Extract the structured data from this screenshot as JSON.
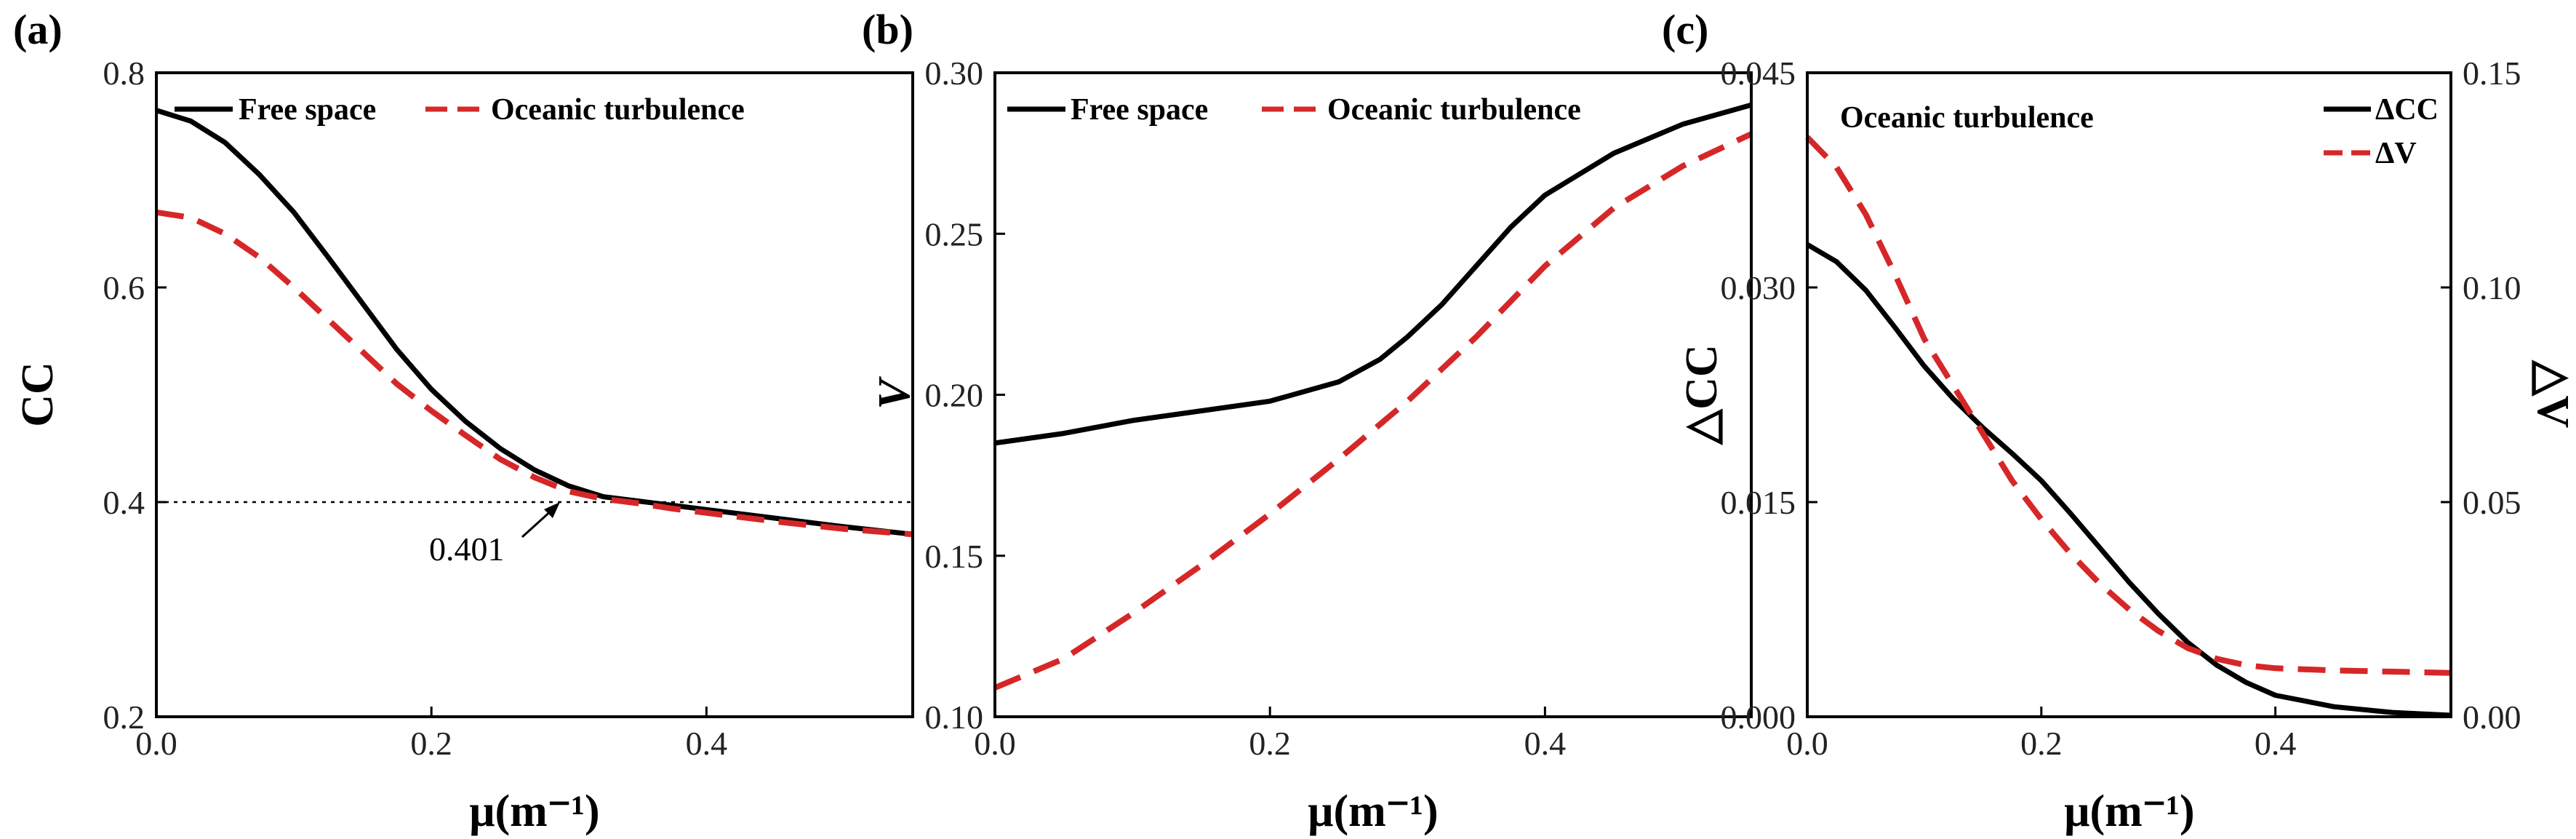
{
  "chart_data": [
    {
      "type": "line",
      "panel_label": "(a)",
      "xlabel": "μ(m⁻¹)",
      "ylabel": "CC",
      "xlim": [
        0,
        0.55
      ],
      "ylim": [
        0.2,
        0.8
      ],
      "xticks": [
        0.0,
        0.2,
        0.4
      ],
      "xtick_labels": [
        "0.0",
        "0.2",
        "0.4"
      ],
      "yticks": [
        0.2,
        0.4,
        0.6,
        0.8
      ],
      "ytick_labels": [
        "0.2",
        "0.4",
        "0.6",
        "0.8"
      ],
      "legend_position": "top",
      "series": [
        {
          "name": "Free space",
          "color": "#000000",
          "dash": "solid",
          "x": [
            0,
            0.025,
            0.05,
            0.075,
            0.1,
            0.125,
            0.15,
            0.175,
            0.2,
            0.225,
            0.25,
            0.275,
            0.3,
            0.325,
            0.35,
            0.375,
            0.4,
            0.45,
            0.5,
            0.55
          ],
          "y": [
            0.765,
            0.755,
            0.735,
            0.705,
            0.67,
            0.628,
            0.585,
            0.542,
            0.505,
            0.475,
            0.45,
            0.43,
            0.415,
            0.405,
            0.401,
            0.397,
            0.393,
            0.385,
            0.377,
            0.37
          ]
        },
        {
          "name": "Oceanic turbulence",
          "color": "#d62728",
          "dash": "dashed",
          "x": [
            0,
            0.025,
            0.05,
            0.075,
            0.1,
            0.125,
            0.15,
            0.175,
            0.2,
            0.225,
            0.25,
            0.275,
            0.3,
            0.325,
            0.35,
            0.375,
            0.4,
            0.45,
            0.5,
            0.55
          ],
          "y": [
            0.67,
            0.665,
            0.65,
            0.628,
            0.6,
            0.57,
            0.54,
            0.51,
            0.485,
            0.462,
            0.44,
            0.423,
            0.41,
            0.403,
            0.399,
            0.394,
            0.39,
            0.382,
            0.375,
            0.37
          ]
        }
      ],
      "reference_line": {
        "y": 0.4,
        "style": "dotted"
      },
      "annotations": [
        {
          "text": "0.401",
          "x": 0.35,
          "y": 0.401
        }
      ]
    },
    {
      "type": "line",
      "panel_label": "(b)",
      "xlabel": "μ(m⁻¹)",
      "ylabel": "V",
      "xlim": [
        0,
        0.55
      ],
      "ylim": [
        0.1,
        0.3
      ],
      "xticks": [
        0.0,
        0.2,
        0.4
      ],
      "xtick_labels": [
        "0.0",
        "0.2",
        "0.4"
      ],
      "yticks": [
        0.1,
        0.15,
        0.2,
        0.25,
        0.3
      ],
      "ytick_labels": [
        "0.10",
        "0.15",
        "0.20",
        "0.25",
        "0.30"
      ],
      "legend_position": "top",
      "series": [
        {
          "name": "Free space",
          "color": "#000000",
          "dash": "solid",
          "x": [
            0,
            0.05,
            0.1,
            0.15,
            0.2,
            0.25,
            0.28,
            0.3,
            0.325,
            0.35,
            0.375,
            0.4,
            0.45,
            0.5,
            0.55
          ],
          "y": [
            0.185,
            0.188,
            0.192,
            0.195,
            0.198,
            0.204,
            0.211,
            0.218,
            0.228,
            0.24,
            0.252,
            0.262,
            0.275,
            0.284,
            0.29
          ]
        },
        {
          "name": "Oceanic turbulence",
          "color": "#d62728",
          "dash": "dashed",
          "x": [
            0,
            0.05,
            0.1,
            0.15,
            0.2,
            0.25,
            0.3,
            0.35,
            0.4,
            0.45,
            0.5,
            0.55
          ],
          "y": [
            0.109,
            0.118,
            0.132,
            0.147,
            0.163,
            0.18,
            0.198,
            0.218,
            0.24,
            0.258,
            0.271,
            0.281
          ]
        }
      ]
    },
    {
      "type": "line",
      "panel_label": "(c)",
      "inset_text": "Oceanic turbulence",
      "xlabel": "μ(m⁻¹)",
      "ylabel": "△CC",
      "ylabel_right": "△V",
      "xlim": [
        0,
        0.55
      ],
      "ylim": [
        0,
        0.045
      ],
      "ylim_right": [
        0,
        0.15
      ],
      "xticks": [
        0.0,
        0.2,
        0.4
      ],
      "xtick_labels": [
        "0.0",
        "0.2",
        "0.4"
      ],
      "yticks": [
        0,
        0.015,
        0.03,
        0.045
      ],
      "ytick_labels": [
        "0.000",
        "0.015",
        "0.030",
        "0.045"
      ],
      "yticks_right": [
        0,
        0.05,
        0.1,
        0.15
      ],
      "ytick_labels_right": [
        "0.00",
        "0.05",
        "0.10",
        "0.15"
      ],
      "legend_position": "top-right",
      "series": [
        {
          "name": "ΔCC",
          "axis": "left",
          "color": "#000000",
          "dash": "solid",
          "x": [
            0,
            0.025,
            0.05,
            0.075,
            0.1,
            0.125,
            0.15,
            0.175,
            0.2,
            0.225,
            0.25,
            0.275,
            0.3,
            0.325,
            0.35,
            0.375,
            0.4,
            0.45,
            0.5,
            0.55
          ],
          "y": [
            0.033,
            0.0318,
            0.0298,
            0.0272,
            0.0245,
            0.0222,
            0.0202,
            0.0184,
            0.0165,
            0.0142,
            0.0118,
            0.0094,
            0.0072,
            0.0052,
            0.0036,
            0.0024,
            0.0015,
            0.0007,
            0.0003,
            0.0001
          ]
        },
        {
          "name": "ΔV",
          "axis": "right",
          "color": "#d62728",
          "dash": "dashed",
          "x": [
            0,
            0.025,
            0.05,
            0.075,
            0.1,
            0.125,
            0.15,
            0.175,
            0.2,
            0.225,
            0.25,
            0.275,
            0.3,
            0.325,
            0.35,
            0.375,
            0.4,
            0.45,
            0.5,
            0.55
          ],
          "y": [
            0.135,
            0.128,
            0.117,
            0.103,
            0.088,
            0.077,
            0.066,
            0.055,
            0.046,
            0.038,
            0.031,
            0.025,
            0.02,
            0.016,
            0.0135,
            0.012,
            0.0113,
            0.0108,
            0.0105,
            0.0102
          ]
        }
      ]
    }
  ]
}
